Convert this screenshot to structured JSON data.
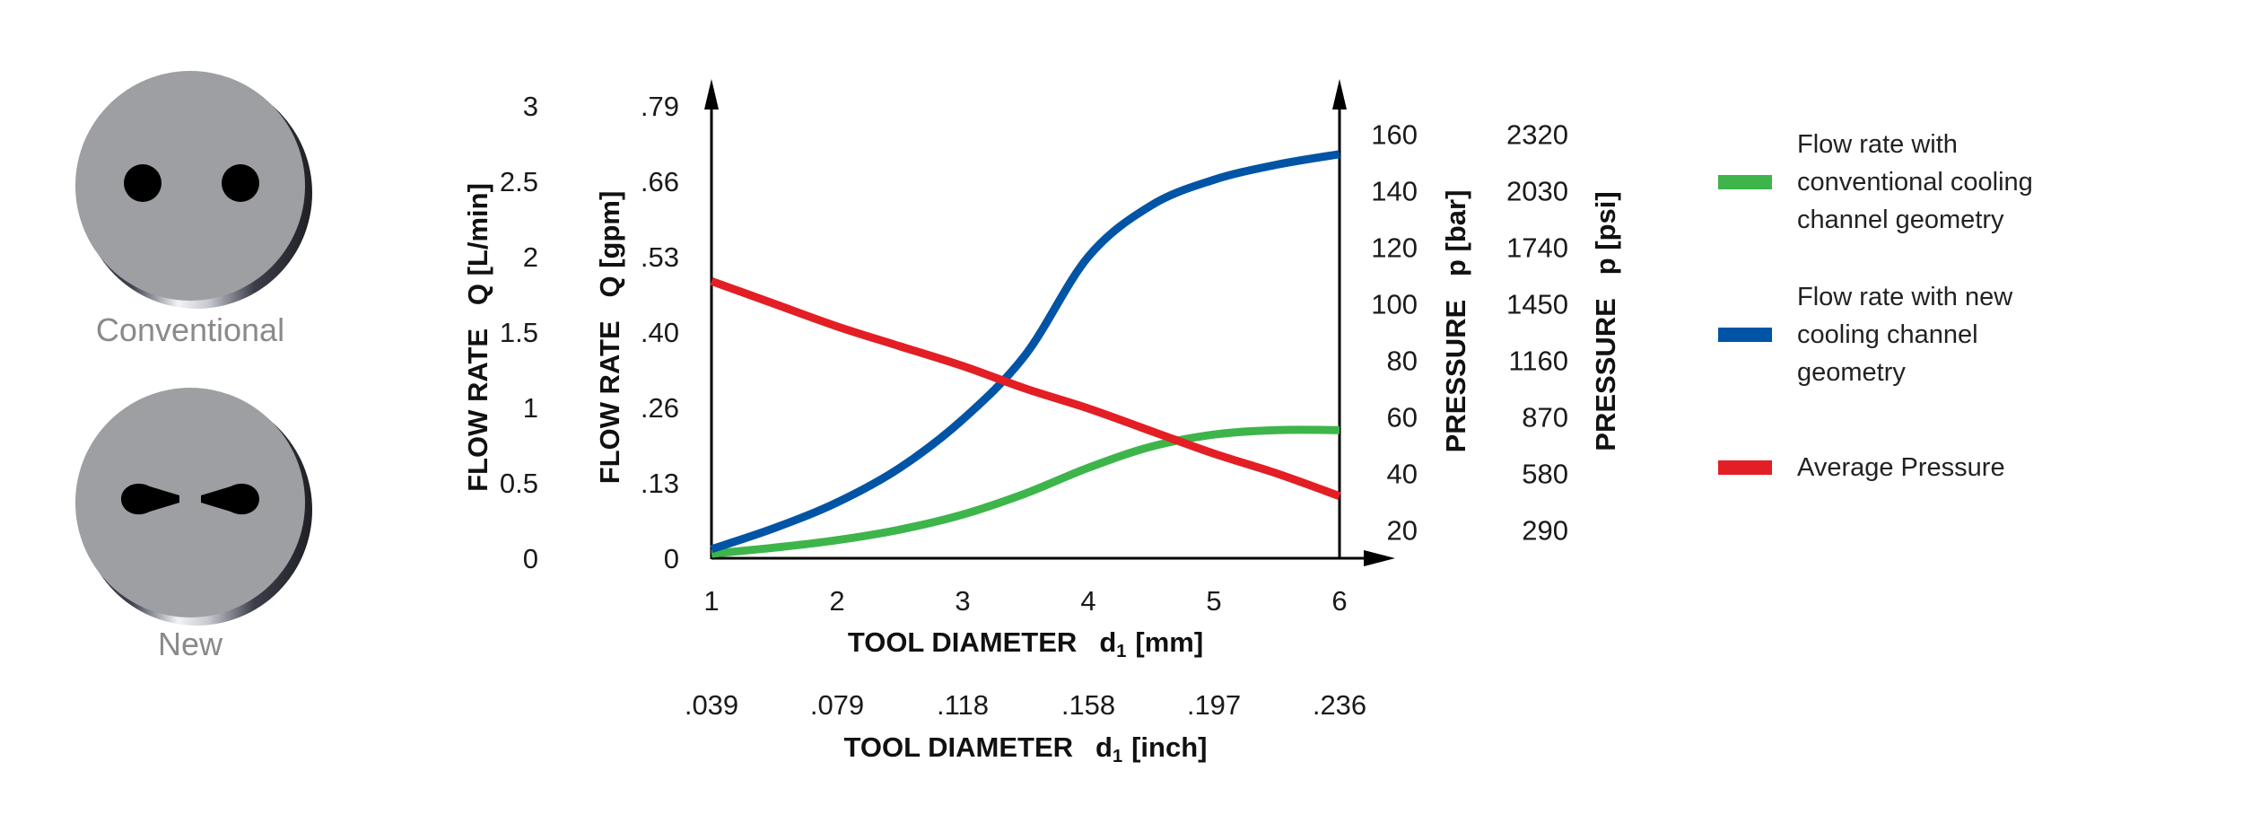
{
  "inserts": [
    {
      "label": "Conventional",
      "hole_shape": "round"
    },
    {
      "label": "New",
      "hole_shape": "teardrop"
    }
  ],
  "chart_data": {
    "type": "line",
    "x": [
      1,
      1.5,
      2,
      2.5,
      3,
      3.5,
      4,
      4.5,
      5,
      5.5,
      6
    ],
    "xlim": [
      1,
      6
    ],
    "x_ticks": [
      "1",
      "2",
      "3",
      "4",
      "5",
      "6"
    ],
    "xlabel": "TOOL DIAMETER",
    "xlabel_symbol": "d",
    "xlabel_subscript": "1",
    "xlabel_unit": "[mm]",
    "x2_ticks": [
      ".039",
      ".079",
      ".118",
      ".158",
      ".197",
      ".236"
    ],
    "x2label": "TOOL DIAMETER",
    "x2label_symbol": "d",
    "x2label_subscript": "1",
    "x2label_unit": "[inch]",
    "y_left_outer": {
      "label": "FLOW RATE   Q [L/min]",
      "ticks": [
        "0",
        "0.5",
        "1",
        "1.5",
        "2",
        "2.5",
        "3"
      ],
      "ylim": [
        0,
        3
      ]
    },
    "y_left_inner": {
      "label": "FLOW RATE   Q [gpm]",
      "ticks": [
        "0",
        ".13",
        ".26",
        ".40",
        ".53",
        ".66",
        ".79"
      ]
    },
    "y_right_inner": {
      "label": "PRESSURE   p [bar]",
      "ticks": [
        "20",
        "40",
        "60",
        "80",
        "100",
        "120",
        "140",
        "160"
      ],
      "ylim": [
        10,
        170
      ]
    },
    "y_right_outer": {
      "label": "PRESSURE   p [psi]",
      "ticks": [
        "290",
        "580",
        "870",
        "1160",
        "1450",
        "1740",
        "2030",
        "2320"
      ]
    },
    "series": [
      {
        "name": "Flow rate with conventional cooling channel geometry",
        "axis": "left",
        "color": "#3db54a",
        "values": [
          0.03,
          0.07,
          0.12,
          0.19,
          0.29,
          0.43,
          0.6,
          0.74,
          0.82,
          0.85,
          0.85
        ]
      },
      {
        "name": "Flow rate with new cooling channel geometry",
        "axis": "left",
        "color": "#0054a6",
        "values": [
          0.06,
          0.2,
          0.37,
          0.6,
          0.92,
          1.35,
          2.0,
          2.34,
          2.51,
          2.61,
          2.68
        ]
      },
      {
        "name": "Average Pressure",
        "axis": "right",
        "color": "#e31e24",
        "values": [
          108,
          100,
          92,
          85,
          78,
          70,
          63,
          55,
          47,
          40,
          32
        ]
      }
    ],
    "legend_position": "right",
    "legend": [
      {
        "lines": [
          "Flow rate with",
          "conventional cooling",
          "channel geometry"
        ],
        "color": "#3db54a"
      },
      {
        "lines": [
          "Flow rate with new",
          "cooling channel",
          "geometry"
        ],
        "color": "#0054a6"
      },
      {
        "lines": [
          "Average Pressure"
        ],
        "color": "#e31e24"
      }
    ],
    "grid": false
  }
}
